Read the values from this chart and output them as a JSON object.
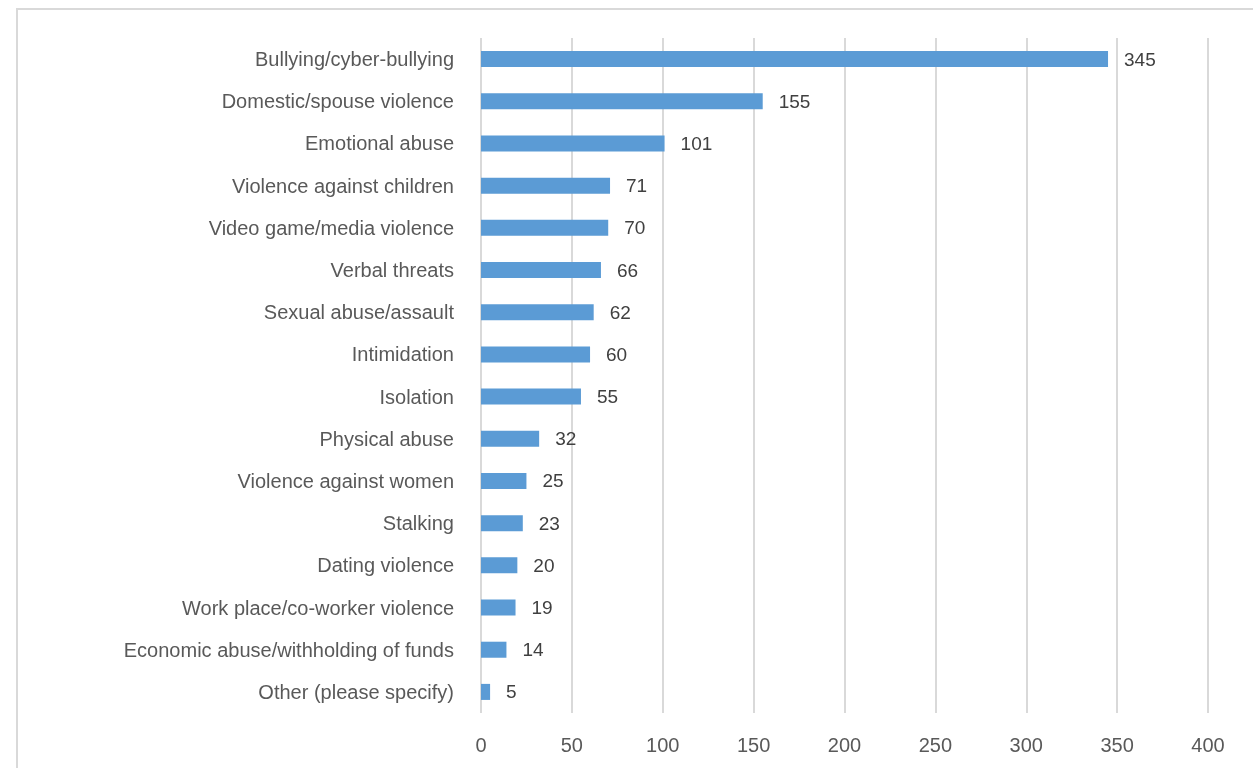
{
  "chart_data": {
    "type": "bar",
    "orientation": "horizontal",
    "categories": [
      "Bullying/cyber-bullying",
      "Domestic/spouse violence",
      "Emotional abuse",
      "Violence against children",
      "Video game/media violence",
      "Verbal threats",
      "Sexual abuse/assault",
      "Intimidation",
      "Isolation",
      "Physical abuse",
      "Violence against women",
      "Stalking",
      "Dating violence",
      "Work place/co-worker violence",
      "Economic abuse/withholding of funds",
      "Other (please specify)"
    ],
    "values": [
      345,
      155,
      101,
      71,
      70,
      66,
      62,
      60,
      55,
      32,
      25,
      23,
      20,
      19,
      14,
      5
    ],
    "color": "#5b9bd5",
    "xlim": [
      0,
      400
    ],
    "xticks": [
      0,
      50,
      100,
      150,
      200,
      250,
      300,
      350,
      400
    ],
    "grid": "x",
    "data_labels": true
  }
}
